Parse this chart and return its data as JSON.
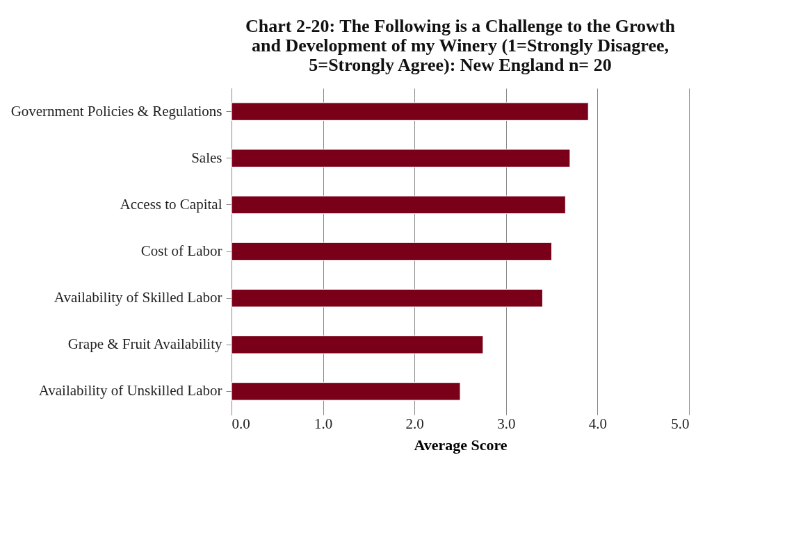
{
  "chart_data": {
    "type": "bar",
    "orientation": "horizontal",
    "title": "Chart 2-20:  The Following is a Challenge to the Growth\nand Development  of my Winery (1=Strongly Disagree,\n5=Strongly Agree): New England  n= 20",
    "xlabel": "Average Score",
    "categories": [
      "Government Policies & Regulations",
      "Sales",
      "Access to Capital",
      "Cost of Labor",
      "Availability of Skilled Labor",
      "Grape & Fruit Availability",
      "Availability of Unskilled Labor"
    ],
    "values": [
      3.9,
      3.7,
      3.65,
      3.5,
      3.4,
      2.75,
      2.5
    ],
    "color": "#7a0019",
    "xlim": [
      0,
      5
    ],
    "xticks": [
      {
        "value": 0,
        "label": "0.0"
      },
      {
        "value": 1,
        "label": "1.0"
      },
      {
        "value": 2,
        "label": "2.0"
      },
      {
        "value": 3,
        "label": "3.0"
      },
      {
        "value": 4,
        "label": "4.0"
      },
      {
        "value": 5,
        "label": "5.0"
      }
    ],
    "grid": "x"
  }
}
